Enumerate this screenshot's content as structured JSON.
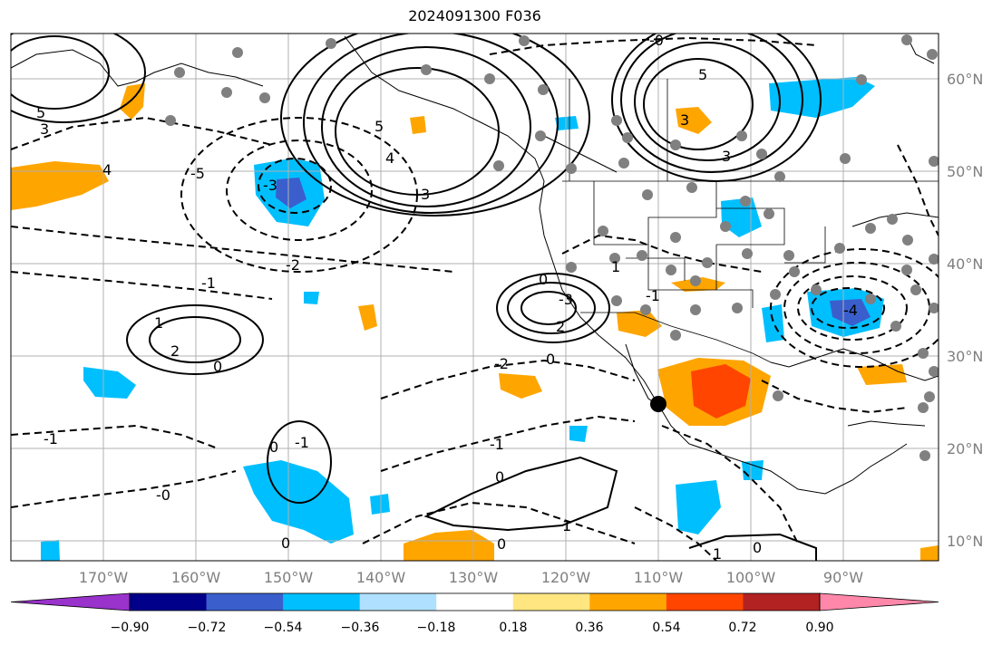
{
  "title": "2024091300 F036",
  "map": {
    "lat_labels": [
      "60°N",
      "50°N",
      "40°N",
      "30°N",
      "20°N",
      "10°N"
    ],
    "lon_labels": [
      "170°W",
      "160°W",
      "150°W",
      "140°W",
      "130°W",
      "120°W",
      "110°W",
      "100°W",
      "90°W"
    ],
    "contour_labels": [
      "5",
      "3",
      "4",
      "-5",
      "-3",
      "3",
      "5",
      "4",
      "3",
      "5",
      "3",
      "-2",
      "-1",
      "1",
      "2",
      "0",
      "-1",
      "-0",
      "0",
      "-1",
      "0",
      "-2",
      "0",
      "-3",
      "2",
      "1",
      "-1",
      "0",
      "-1",
      "0",
      "0",
      "1",
      "-4",
      "0",
      "1",
      "-0"
    ],
    "marker_dot_count": 60,
    "current_location_marker": "black-dot-marker"
  },
  "colorbar": {
    "colors": [
      "#9933cc",
      "#00008b",
      "#3a5fcd",
      "#00bfff",
      "#b0e0ff",
      "#ffffff",
      "#ffe680",
      "#ffa500",
      "#ff4500",
      "#b22222",
      "#ff88aa"
    ],
    "ticks": [
      "−0.90",
      "−0.72",
      "−0.54",
      "−0.36",
      "−0.18",
      "0.18",
      "0.36",
      "0.54",
      "0.72",
      "0.90"
    ]
  },
  "colors": {
    "positive_light": "#ffa500",
    "positive_strong": "#ff4500",
    "negative_light": "#00bfff",
    "negative_strong": "#3a5fcd",
    "dots": "#808080",
    "grid": "#b0b0b0"
  }
}
